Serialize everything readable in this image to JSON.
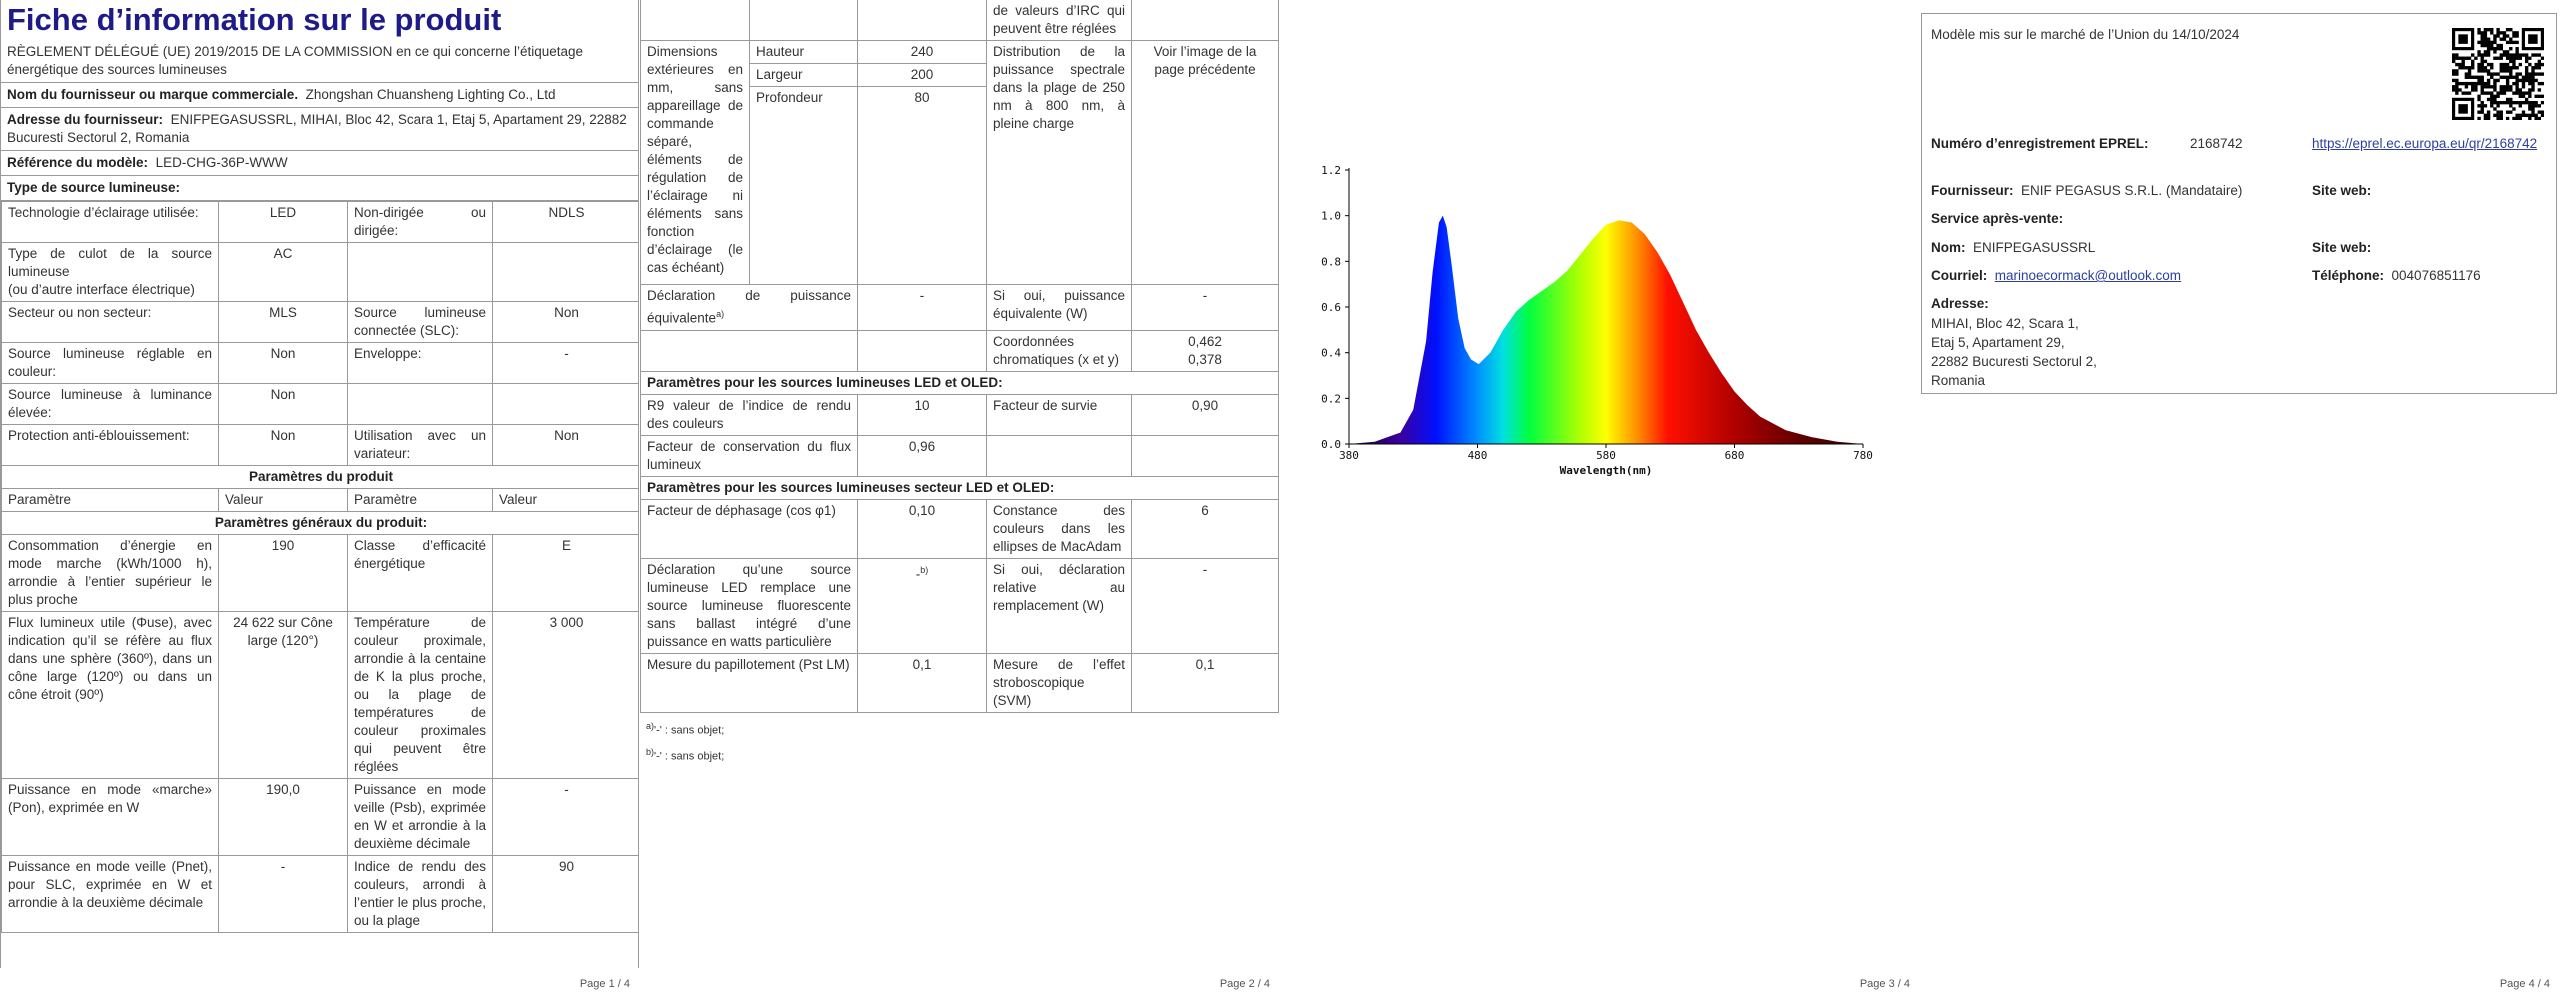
{
  "page1": {
    "title": "Fiche d’information sur le produit",
    "regulation": "RÈGLEMENT DÉLÉGUÉ (UE) 2019/2015 DE LA COMMISSION en ce qui concerne l’étiquetage énergétique des sources lumineuses",
    "supplier_label": "Nom du fournisseur ou marque commerciale.",
    "supplier": "Zhongshan Chuansheng Lighting Co., Ltd",
    "address_label": "Adresse du fournisseur:",
    "address": "ENIFPEGASUSSRL, MIHAI, Bloc 42, Scara 1, Etaj 5, Apartament 29, 22882 Bucuresti Sectorul 2, Romania",
    "model_label": "Référence du modèle:",
    "model": "LED-CHG-36P-WWW",
    "light_source_heading": "Type de source lumineuse:",
    "light_source_rows": [
      [
        "Technologie d’éclairage utilisée:",
        "LED",
        "Non-dirigée ou dirigée:",
        "NDLS"
      ],
      [
        "Type de culot de la source lumineuse",
        "AC"
      ],
      [
        "Secteur ou non secteur:",
        "MLS",
        "Source lumineuse connectée (SLC):",
        "Non"
      ],
      [
        "Source lumineuse réglable en couleur:",
        "Non",
        "Enveloppe:",
        "-"
      ],
      [
        "Source lumineuse à luminance élevée:",
        "Non"
      ],
      [
        "Protection anti-éblouissement:",
        "Non",
        "Utilisation avec un variateur:",
        "Non"
      ]
    ],
    "base_note": "(ou d’autre interface électrique)",
    "params_heading": "Paramètres du produit",
    "params_header": [
      "Paramètre",
      "Valeur",
      "Paramètre",
      "Valeur"
    ],
    "general_heading": "Paramètres généraux du produit:",
    "general_rows": [
      [
        "Consommation d’énergie en mode marche (kWh/1000 h), arrondie à l’entier supérieur le plus proche",
        "190",
        "Classe d’efficacité énergétique",
        "E"
      ],
      [
        "Flux lumineux utile (Φuse), avec indication qu’il se réfère au flux dans une sphère (360º), dans un cône large (120º) ou dans un cône étroit (90º)",
        "24 622 sur Cône large (120°)",
        "Température de couleur proximale, arrondie à la centaine de K la plus proche, ou la plage de températures de couleur proximales qui peuvent être réglées",
        "3 000"
      ],
      [
        "Puissance en mode «marche» (Pon), exprimée en W",
        "190,0",
        "Puissance en mode veille (Psb), exprimée en W et arrondie à la deuxième décimale",
        "-"
      ],
      [
        "Puissance en mode veille (Pnet), pour SLC, exprimée en W et arrondie à la deuxième décimale",
        "-",
        "Indice de rendu des couleurs, arrondi à l’entier le plus proche, ou la plage",
        "90"
      ]
    ],
    "page_number": "Page 1 / 4"
  },
  "page2": {
    "cri_continuation": "de valeurs d’IRC qui peuvent être réglées",
    "dimensions_label": "Dimensions extérieures en mm, sans appareillage de commande séparé, éléments de régulation de l’éclairage ni éléments sans fonction d’éclairage (le cas échéant)",
    "dimensions": [
      {
        "label": "Hauteur",
        "value": "240"
      },
      {
        "label": "Largeur",
        "value": "200"
      },
      {
        "label": "Profondeur",
        "value": "80"
      }
    ],
    "spectral_label": "Distribution de la puissance spectrale dans la plage de 250 nm à 800 nm, à pleine charge",
    "spectral_value": "Voir l’image de la page précédente",
    "equivalent_label": "Déclaration de puissance équivalente",
    "equivalent_note": "a)",
    "equivalent_value": "-",
    "equivalent_if_label": "Si oui, puissance équivalente (W)",
    "equivalent_if_value": "-",
    "chromaticity_label": "Coordonnées chromatiques (x et y)",
    "chromaticity": [
      "0,462",
      "0,378"
    ],
    "led_heading": "Paramètres pour les sources lumineuses LED et OLED:",
    "led_rows": [
      [
        "R9 valeur de l’indice de rendu des couleurs",
        "10",
        "Facteur de survie",
        "0,90"
      ],
      [
        "Facteur de conservation du flux lumineux",
        "0,96"
      ]
    ],
    "mains_heading": "Paramètres pour les sources lumineuses secteur LED et OLED:",
    "mains_rows": [
      [
        "Facteur de déphasage (cos φ1)",
        "0,10",
        "Constance des couleurs dans les ellipses de MacAdam",
        "6"
      ],
      [
        "Déclaration qu’une source lumineuse LED remplace une source lumineuse fluorescente sans ballast intégré d’une puissance en watts particulière",
        "-",
        "Si oui, déclaration relative au remplacement (W)",
        "-"
      ],
      [
        "Mesure du papillotement (Pst LM)",
        "0,1",
        "Mesure de l’effet stroboscopique (SVM)",
        "0,1"
      ]
    ],
    "replacement_note": "b)",
    "footnotes": [
      {
        "mark": "a)",
        "text": "'-' : sans objet;"
      },
      {
        "mark": "b)",
        "text": "'-' : sans objet;"
      }
    ],
    "page_number": "Page 2 / 4"
  },
  "chart_data": {
    "type": "area",
    "xlabel": "Wavelength(nm)",
    "x": [
      380,
      400,
      420,
      430,
      440,
      445,
      450,
      453,
      456,
      460,
      465,
      470,
      475,
      481,
      490,
      500,
      510,
      520,
      530,
      540,
      550,
      560,
      570,
      580,
      590,
      600,
      610,
      620,
      630,
      640,
      650,
      660,
      670,
      680,
      690,
      700,
      720,
      740,
      760,
      780
    ],
    "values": [
      0,
      0.01,
      0.05,
      0.15,
      0.45,
      0.75,
      0.97,
      1.0,
      0.95,
      0.78,
      0.55,
      0.42,
      0.37,
      0.35,
      0.4,
      0.5,
      0.58,
      0.63,
      0.67,
      0.71,
      0.76,
      0.83,
      0.9,
      0.96,
      0.98,
      0.97,
      0.92,
      0.84,
      0.74,
      0.62,
      0.5,
      0.4,
      0.31,
      0.23,
      0.17,
      0.12,
      0.06,
      0.03,
      0.01,
      0
    ],
    "xlim": [
      380,
      780
    ],
    "ylim": [
      0,
      1.2
    ],
    "xticks": [
      380,
      480,
      580,
      680,
      780
    ],
    "yticks": [
      {
        "value": 0,
        "label": "0.0"
      },
      0.2,
      0.4,
      0.6,
      0.8,
      {
        "value": 1,
        "label": "1.0"
      },
      1.2
    ],
    "grid": false
  },
  "page3": {
    "page_number": "Page 3 / 4"
  },
  "page4": {
    "market_date": "Modèle mis sur le marché de l’Union du 14/10/2024",
    "eprel_label": "Numéro d’enregistrement EPREL:",
    "eprel": "2168742",
    "eprel_link": "https://eprel.ec.europa.eu/qr/2168742",
    "supplier_label": "Fournisseur:",
    "supplier": "ENIF PEGASUS S.R.L. (Mandataire)",
    "website_label": "Site web:",
    "service_heading": "Service après-vente:",
    "name_label": "Nom:",
    "name": "ENIFPEGASUSSRL",
    "service_website_label": "Site web:",
    "email_label": "Courriel:",
    "email": "marinoecormack@outlook.com",
    "phone_label": "Téléphone:",
    "phone": "004076851176",
    "address_label": "Adresse:",
    "address_lines": [
      "MIHAI, Bloc 42, Scara 1,",
      "Etaj 5, Apartament 29,",
      "22882 Bucuresti Sectorul 2,",
      "Romania"
    ],
    "page_number": "Page 4 / 4"
  }
}
